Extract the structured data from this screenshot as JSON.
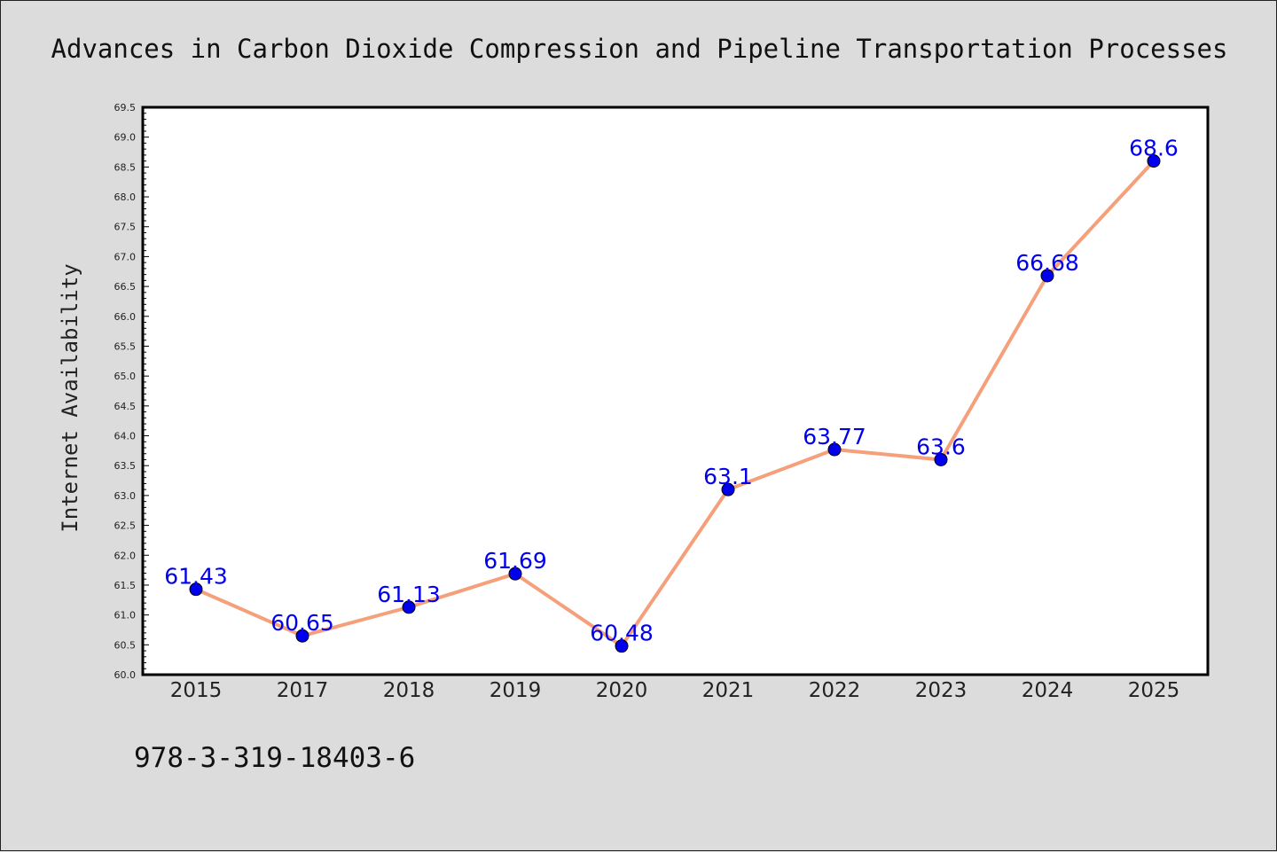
{
  "chart_data": {
    "type": "line",
    "title": "Advances in Carbon Dioxide Compression and Pipeline Transportation Processes",
    "xlabel": "",
    "ylabel": "Internet Availability",
    "categories": [
      "2015",
      "2017",
      "2018",
      "2019",
      "2020",
      "2021",
      "2022",
      "2023",
      "2024",
      "2025"
    ],
    "series": [
      {
        "values": [
          61.43,
          60.65,
          61.13,
          61.69,
          60.48,
          63.1,
          63.77,
          63.6,
          66.68,
          68.6
        ],
        "labels": [
          "61.43",
          "60.65",
          "61.13",
          "61.69",
          "60.48",
          "63.1",
          "63.77",
          "63.6",
          "66.68",
          "68.6"
        ],
        "line_color": "#f5a07a",
        "marker_color": "#0000ee"
      }
    ],
    "ylim": [
      60.0,
      69.5
    ],
    "ytick_step": 0.5,
    "ytick_decimals": 1,
    "grid": false,
    "legend": "none"
  },
  "footer": {
    "isbn": "978-3-319-18403-6"
  },
  "colors": {
    "background": "#dcdcdc",
    "plot_background": "#ffffff",
    "label_color": "#0000ee"
  }
}
